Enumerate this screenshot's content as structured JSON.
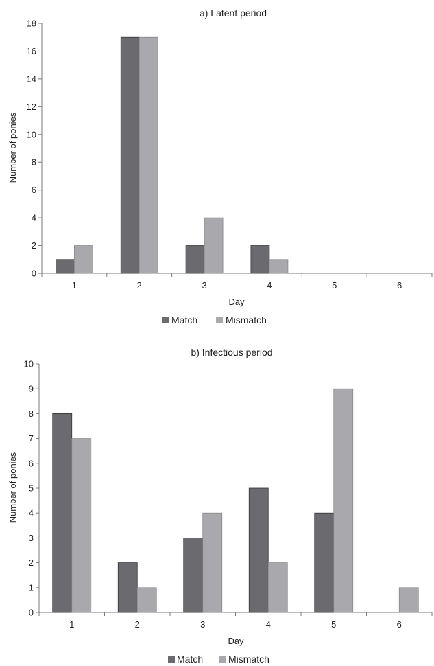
{
  "chart_data": [
    {
      "type": "bar",
      "title": "a) Latent period",
      "xlabel": "Day",
      "ylabel": "Number of ponies",
      "categories": [
        "1",
        "2",
        "3",
        "4",
        "5",
        "6"
      ],
      "series": [
        {
          "name": "Match",
          "values": [
            1,
            17,
            2,
            2,
            0,
            0
          ]
        },
        {
          "name": "Mismatch",
          "values": [
            2,
            17,
            4,
            1,
            0,
            0
          ]
        }
      ],
      "ylim": [
        0,
        18
      ],
      "yticks": [
        0,
        2,
        4,
        6,
        8,
        10,
        12,
        14,
        16,
        18
      ],
      "legend": "bottom",
      "grid": false
    },
    {
      "type": "bar",
      "title": "b) Infectious period",
      "xlabel": "Day",
      "ylabel": "Number of ponies",
      "categories": [
        "1",
        "2",
        "3",
        "4",
        "5",
        "6"
      ],
      "series": [
        {
          "name": "Match",
          "values": [
            8,
            2,
            3,
            5,
            4,
            0
          ]
        },
        {
          "name": "Mismatch",
          "values": [
            7,
            1,
            4,
            2,
            9,
            1
          ]
        }
      ],
      "ylim": [
        0,
        10
      ],
      "yticks": [
        0,
        1,
        2,
        3,
        4,
        5,
        6,
        7,
        8,
        9,
        10
      ],
      "legend": "bottom",
      "grid": false
    }
  ],
  "colors": {
    "match": "#6b6b6f",
    "mismatch": "#a9a9ad",
    "axis": "#7a7a7a"
  }
}
